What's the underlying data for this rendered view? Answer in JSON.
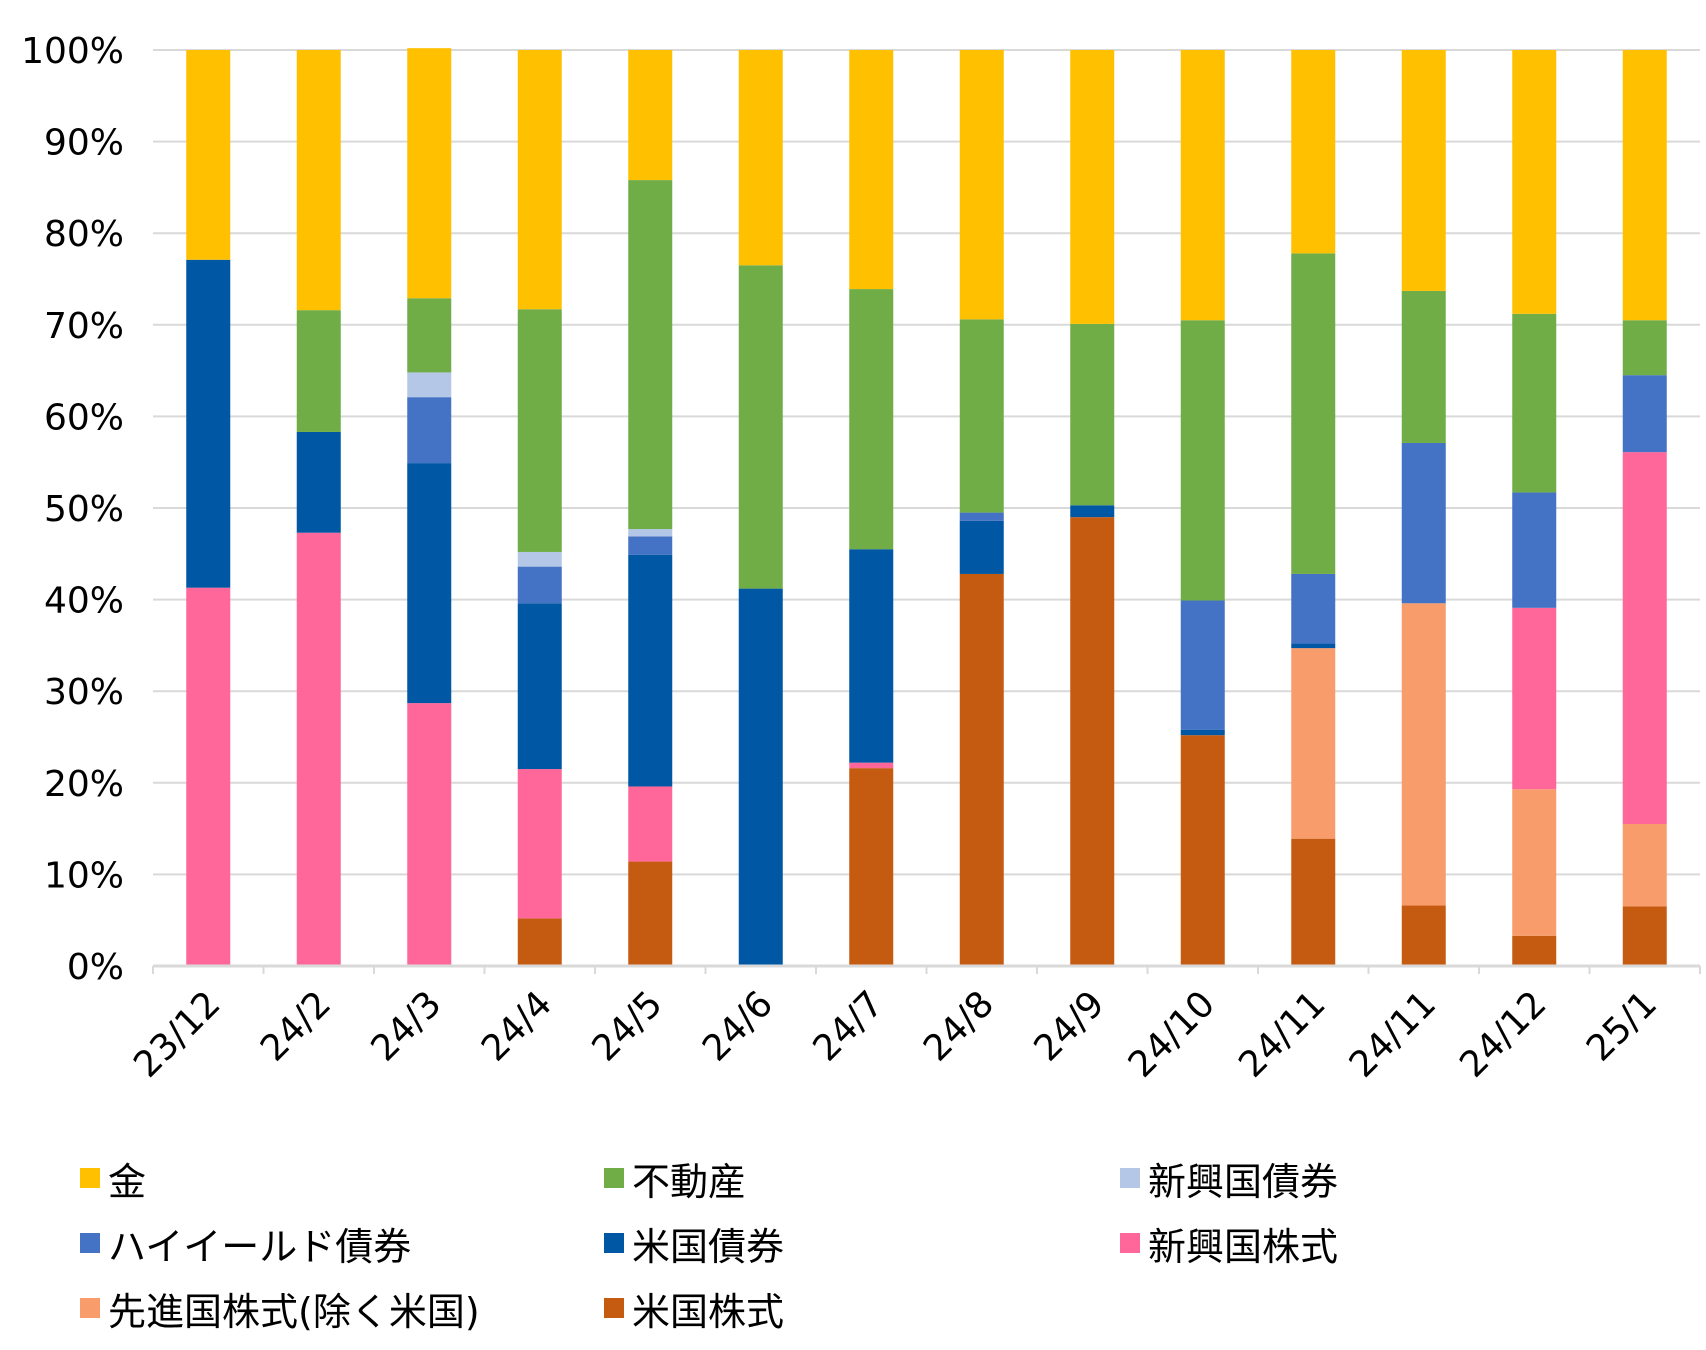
{
  "chart_data": {
    "type": "bar",
    "stacked": true,
    "categories": [
      "23/12",
      "24/2",
      "24/3",
      "24/4",
      "24/5",
      "24/6",
      "24/7",
      "24/8",
      "24/9",
      "24/10",
      "24/11",
      "24/11",
      "24/12",
      "25/1"
    ],
    "y_ticks": [
      "0%",
      "10%",
      "20%",
      "30%",
      "40%",
      "50%",
      "60%",
      "70%",
      "80%",
      "90%",
      "100%"
    ],
    "ylim": [
      0,
      100
    ],
    "series": [
      {
        "name": "米国株式",
        "color": "#C55A11",
        "values": [
          0,
          0,
          0,
          5.2,
          11.4,
          0,
          21.6,
          42.8,
          49.0,
          25.2,
          13.9,
          6.6,
          3.3,
          6.5
        ]
      },
      {
        "name": "先進国株式(除く米国)",
        "color": "#F79C6A",
        "values": [
          0,
          0,
          0,
          0,
          0,
          0,
          0,
          0,
          0,
          0,
          20.8,
          33.0,
          16.0,
          9.0
        ]
      },
      {
        "name": "新興国株式",
        "color": "#FF6699",
        "values": [
          41.3,
          47.3,
          28.7,
          16.3,
          8.2,
          0,
          0.6,
          0,
          0,
          0,
          0,
          0,
          19.8,
          40.6
        ]
      },
      {
        "name": "米国債券",
        "color": "#0057A3",
        "values": [
          35.8,
          11.0,
          26.2,
          18.1,
          25.3,
          41.2,
          23.3,
          5.8,
          1.3,
          0.6,
          0.5,
          0,
          0,
          0
        ]
      },
      {
        "name": "ハイイールド債券",
        "color": "#4472C4",
        "values": [
          0,
          0,
          7.2,
          4.0,
          2.0,
          0,
          0,
          0.9,
          0,
          14.1,
          7.6,
          17.5,
          12.6,
          8.4
        ]
      },
      {
        "name": "新興国債券",
        "color": "#B4C7E7",
        "values": [
          0,
          0,
          2.7,
          1.6,
          0.8,
          0,
          0,
          0,
          0,
          0,
          0,
          0,
          0,
          0
        ]
      },
      {
        "name": "不動産",
        "color": "#70AD47",
        "values": [
          0,
          13.3,
          8.1,
          26.5,
          38.1,
          35.3,
          28.4,
          21.1,
          19.8,
          30.6,
          35.0,
          16.6,
          19.5,
          6.0
        ]
      },
      {
        "name": "金",
        "color": "#FFC000",
        "values": [
          22.9,
          28.4,
          27.3,
          28.3,
          14.2,
          23.5,
          26.1,
          29.4,
          29.9,
          29.5,
          22.2,
          26.3,
          28.8,
          29.5
        ]
      }
    ],
    "legend": [
      {
        "label": "金",
        "color": "#FFC000"
      },
      {
        "label": "不動産",
        "color": "#70AD47"
      },
      {
        "label": "新興国債券",
        "color": "#B4C7E7"
      },
      {
        "label": "ハイイールド債券",
        "color": "#4472C4"
      },
      {
        "label": "米国債券",
        "color": "#0057A3"
      },
      {
        "label": "新興国株式",
        "color": "#FF6699"
      },
      {
        "label": "先進国株式(除く米国)",
        "color": "#F79C6A"
      },
      {
        "label": "米国株式",
        "color": "#C55A11"
      }
    ],
    "grid": true,
    "legend_position": "bottom"
  }
}
